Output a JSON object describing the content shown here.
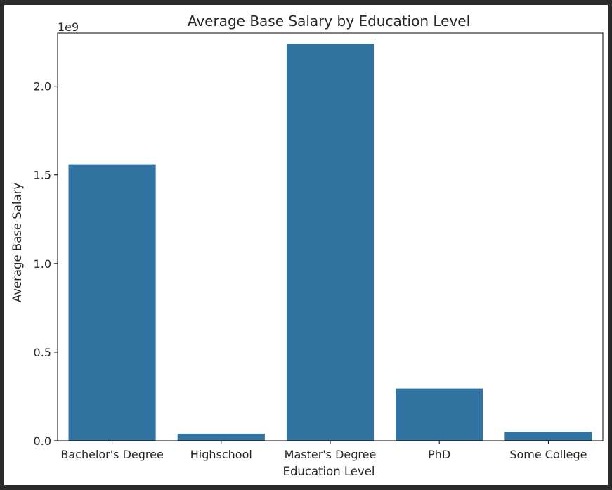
{
  "chart_data": {
    "type": "bar",
    "title": "Average Base Salary by Education Level",
    "xlabel": "Education Level",
    "ylabel": "Average Base Salary",
    "offset_label": "1e9",
    "categories": [
      "Bachelor's Degree",
      "Highschool",
      "Master's Degree",
      "PhD",
      "Some College"
    ],
    "values": [
      1.56,
      0.04,
      2.24,
      0.295,
      0.05
    ],
    "value_scale": 1000000000,
    "ylim": [
      0,
      2.3
    ],
    "yticks": [
      0.0,
      0.5,
      1.0,
      1.5,
      2.0
    ],
    "ytick_labels": [
      "0.0",
      "0.5",
      "1.0",
      "1.5",
      "2.0"
    ],
    "grid": false,
    "bar_color": "#3274a1"
  }
}
